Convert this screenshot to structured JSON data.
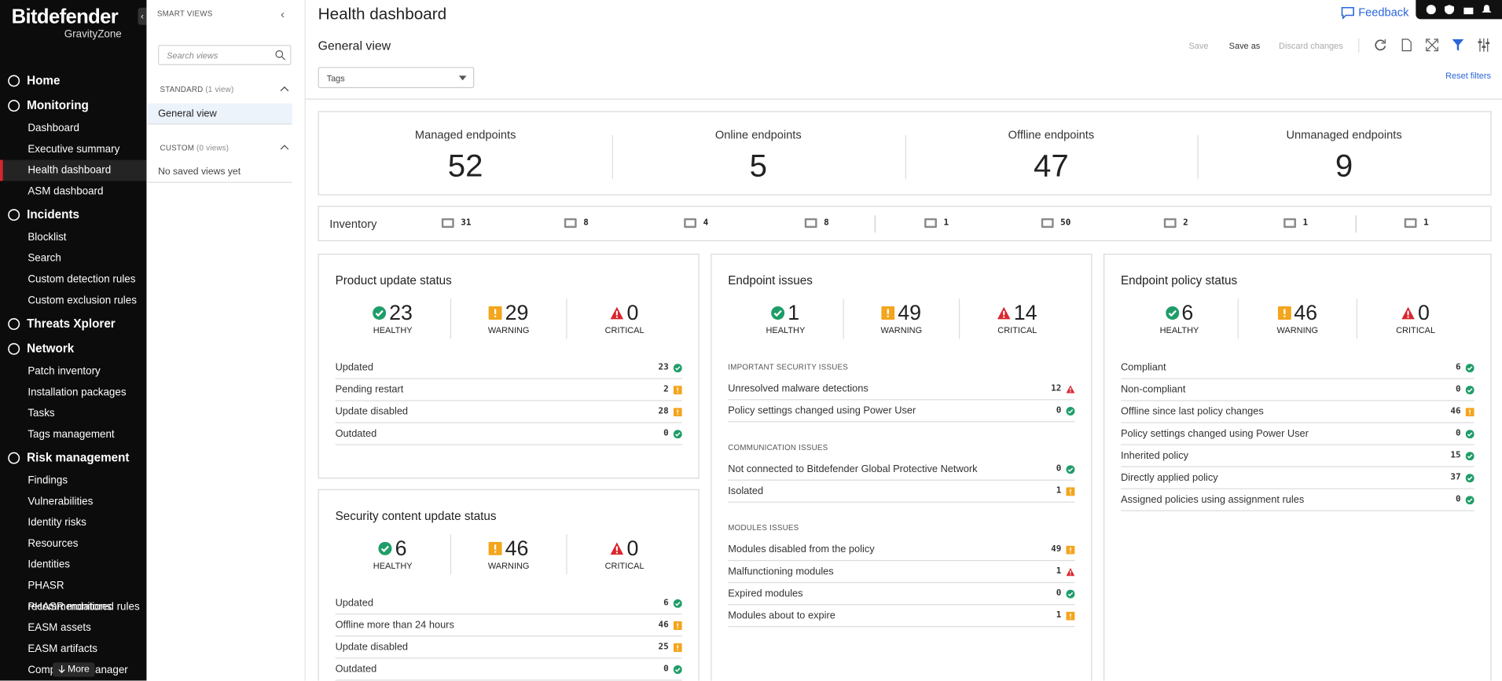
{
  "sidebar": {
    "brand": "Bitdefender",
    "product": "GravityZone",
    "more": "More",
    "active_item": [
      1,
      2
    ],
    "nav": [
      {
        "label": "Home",
        "items": []
      },
      {
        "label": "Monitoring",
        "items": [
          "Dashboard",
          "Executive summary",
          "Health dashboard",
          "ASM dashboard"
        ]
      },
      {
        "label": "Incidents",
        "items": [
          "Blocklist",
          "Search",
          "Custom detection rules",
          "Custom exclusion rules"
        ]
      },
      {
        "label": "Threats Xplorer",
        "items": []
      },
      {
        "label": "Network",
        "items": [
          "Patch inventory",
          "Installation packages",
          "Tasks",
          "Tags management"
        ]
      },
      {
        "label": "Risk management",
        "items": [
          "Findings",
          "Vulnerabilities",
          "Identity risks",
          "Resources",
          "Identities",
          "PHASR recommendations",
          "PHASR monitored rules",
          "EASM assets",
          "EASM artifacts",
          "Compliance manager"
        ]
      }
    ]
  },
  "smart_views": {
    "title": "SMART VIEWS",
    "search_placeholder": "Search views",
    "standard": {
      "label": "STANDARD",
      "count": "(1 view)",
      "views": [
        "General view"
      ]
    },
    "custom": {
      "label": "CUSTOM",
      "count": "(0 views)",
      "empty": "No saved views yet"
    }
  },
  "header": {
    "title": "Health dashboard",
    "feedback": "Feedback",
    "view": "General view",
    "actions": [
      "Save",
      "Save as",
      "Discard changes"
    ],
    "tags": "Tags",
    "reset": "Reset filters"
  },
  "summary": [
    {
      "label": "Managed endpoints",
      "value": 52
    },
    {
      "label": "Online endpoints",
      "value": 5
    },
    {
      "label": "Offline endpoints",
      "value": 47
    },
    {
      "label": "Unmanaged endpoints",
      "value": 9
    }
  ],
  "inventory": {
    "label": "Inventory",
    "counts": [
      31,
      8,
      4,
      8,
      1,
      50,
      2,
      1,
      1
    ]
  },
  "panels": [
    {
      "title": "Product update status",
      "stats": [
        {
          "value": 23,
          "label": "HEALTHY",
          "icon": "ok"
        },
        {
          "value": 29,
          "label": "WARNING",
          "icon": "warning"
        },
        {
          "value": 0,
          "label": "CRITICAL",
          "icon": "critical"
        }
      ],
      "groups": [
        {
          "rows": [
            {
              "label": "Updated",
              "value": 23,
              "icon": "ok"
            },
            {
              "label": "Pending restart",
              "value": 2,
              "icon": "warning"
            },
            {
              "label": "Update disabled",
              "value": 28,
              "icon": "warning"
            },
            {
              "label": "Outdated",
              "value": 0,
              "icon": "ok"
            }
          ]
        }
      ]
    },
    {
      "title": "Endpoint issues",
      "stats": [
        {
          "value": 1,
          "label": "HEALTHY",
          "icon": "ok"
        },
        {
          "value": 49,
          "label": "WARNING",
          "icon": "warning"
        },
        {
          "value": 14,
          "label": "CRITICAL",
          "icon": "critical"
        }
      ],
      "groups": [
        {
          "heading": "IMPORTANT SECURITY ISSUES",
          "rows": [
            {
              "label": "Unresolved malware detections",
              "value": 12,
              "icon": "critical"
            },
            {
              "label": "Policy settings changed using Power User",
              "value": 0,
              "icon": "ok"
            }
          ]
        },
        {
          "heading": "COMMUNICATION ISSUES",
          "rows": [
            {
              "label": "Not connected to Bitdefender Global Protective Network",
              "value": 0,
              "icon": "ok"
            },
            {
              "label": "Isolated",
              "value": 1,
              "icon": "warning"
            }
          ]
        },
        {
          "heading": "MODULES ISSUES",
          "rows": [
            {
              "label": "Modules disabled from the policy",
              "value": 49,
              "icon": "warning"
            },
            {
              "label": "Malfunctioning modules",
              "value": 1,
              "icon": "critical"
            },
            {
              "label": "Expired modules",
              "value": 0,
              "icon": "ok"
            },
            {
              "label": "Modules about to expire",
              "value": 1,
              "icon": "warning"
            }
          ]
        }
      ]
    },
    {
      "title": "Endpoint policy status",
      "stats": [
        {
          "value": 6,
          "label": "HEALTHY",
          "icon": "ok"
        },
        {
          "value": 46,
          "label": "WARNING",
          "icon": "warning"
        },
        {
          "value": 0,
          "label": "CRITICAL",
          "icon": "critical"
        }
      ],
      "groups": [
        {
          "rows": [
            {
              "label": "Compliant",
              "value": 6,
              "icon": "ok"
            },
            {
              "label": "Non-compliant",
              "value": 0,
              "icon": "ok"
            },
            {
              "label": "Offline since last policy changes",
              "value": 46,
              "icon": "warning"
            },
            {
              "label": "Policy settings changed using Power User",
              "value": 0,
              "icon": "ok"
            },
            {
              "label": "Inherited policy",
              "value": 15,
              "icon": "ok"
            },
            {
              "label": "Directly applied policy",
              "value": 37,
              "icon": "ok"
            },
            {
              "label": "Assigned policies using assignment rules",
              "value": 0,
              "icon": "ok"
            }
          ]
        }
      ]
    },
    {
      "title": "Security content update status",
      "stats": [
        {
          "value": 6,
          "label": "HEALTHY",
          "icon": "ok"
        },
        {
          "value": 46,
          "label": "WARNING",
          "icon": "warning"
        },
        {
          "value": 0,
          "label": "CRITICAL",
          "icon": "critical"
        }
      ],
      "groups": [
        {
          "rows": [
            {
              "label": "Updated",
              "value": 6,
              "icon": "ok"
            },
            {
              "label": "Offline more than 24 hours",
              "value": 46,
              "icon": "warning"
            },
            {
              "label": "Update disabled",
              "value": 25,
              "icon": "warning"
            },
            {
              "label": "Outdated",
              "value": 0,
              "icon": "ok"
            }
          ]
        }
      ]
    }
  ]
}
